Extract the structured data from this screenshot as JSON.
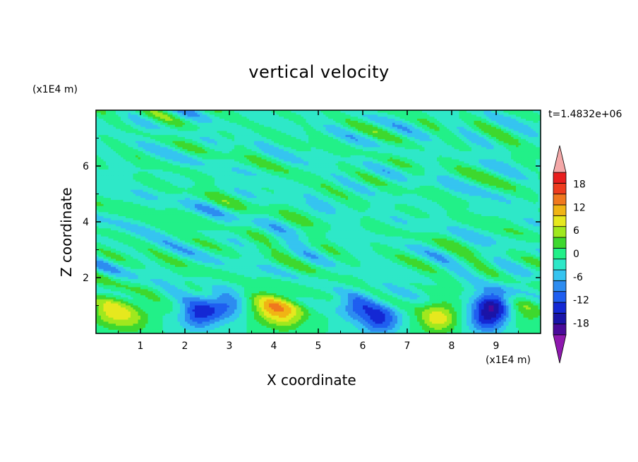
{
  "chart_data": {
    "type": "heatmap",
    "title": "vertical velocity",
    "xlabel": "X coordinate",
    "ylabel": "Z coordinate",
    "x_unit": "(x1E4 m)",
    "z_unit": "(x1E4 m)",
    "time_label": "t=1.4832e+06",
    "xlim": [
      0,
      10
    ],
    "ylim": [
      0,
      8
    ],
    "x_ticks": [
      "1",
      "2",
      "3",
      "4",
      "5",
      "6",
      "7",
      "8",
      "9"
    ],
    "y_ticks": [
      "2",
      "4",
      "6"
    ],
    "colorbar": {
      "levels": [
        -21,
        -18,
        -15,
        -12,
        -9,
        -6,
        -3,
        0,
        3,
        6,
        9,
        12,
        15,
        18,
        21
      ],
      "tick_labels": [
        "18",
        "12",
        "6",
        "0",
        "-6",
        "-12",
        "-18"
      ],
      "colors": [
        "#4a0a9a",
        "#1a14a8",
        "#1428d4",
        "#1f5ef0",
        "#2d8cf0",
        "#35c4f0",
        "#2ee8c8",
        "#22f088",
        "#3ed82e",
        "#a0e81e",
        "#e6e81e",
        "#f0b414",
        "#f0781e",
        "#ee3c1e",
        "#e81e1e"
      ],
      "over_color": "#f4a8a8",
      "under_color": "#8e18ae"
    },
    "features": [
      {
        "x": 0.3,
        "z": 0.85,
        "w": -0.0,
        "value": 9
      },
      {
        "x": 0.8,
        "z": 0.6,
        "value": 7
      },
      {
        "x": 2.3,
        "z": 0.7,
        "value": -12
      },
      {
        "x": 2.9,
        "z": 1.0,
        "value": -9
      },
      {
        "x": 3.9,
        "z": 1.0,
        "value": 11
      },
      {
        "x": 4.3,
        "z": 0.7,
        "value": 9
      },
      {
        "x": 5.9,
        "z": 1.0,
        "value": -9
      },
      {
        "x": 6.4,
        "z": 0.5,
        "value": -12
      },
      {
        "x": 7.7,
        "z": 0.6,
        "value": 11
      },
      {
        "x": 8.8,
        "z": 0.6,
        "value": -14
      },
      {
        "x": 9.0,
        "z": 1.2,
        "value": -10
      },
      {
        "x": 9.7,
        "z": 0.9,
        "value": 5
      }
    ]
  }
}
